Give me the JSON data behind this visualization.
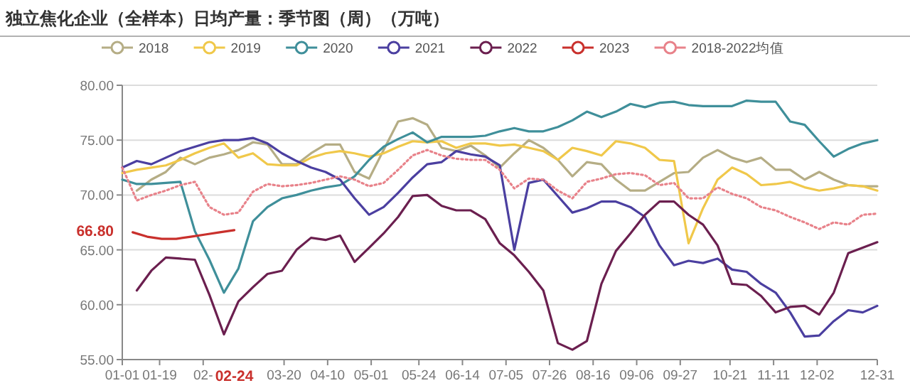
{
  "chart_data": {
    "type": "line",
    "title": "独立焦化企业（全样本）日均产量：季节图（周）（万吨）",
    "x": [
      "--01-01",
      "--01-08",
      "--01-15",
      "--01-22",
      "--01-29",
      "--02-05",
      "--02-12",
      "--02-19",
      "--02-26",
      "--03-05",
      "--03-12",
      "--03-19",
      "--03-26",
      "--04-02",
      "--04-09",
      "--04-16",
      "--04-23",
      "--04-30",
      "--05-07",
      "--05-14",
      "--05-21",
      "--05-28",
      "--06-04",
      "--06-11",
      "--06-18",
      "--06-25",
      "--07-02",
      "--07-09",
      "--07-16",
      "--07-23",
      "--07-30",
      "--08-06",
      "--08-13",
      "--08-20",
      "--08-27",
      "--09-03",
      "--09-10",
      "--09-17",
      "--09-24",
      "--10-01",
      "--10-08",
      "--10-15",
      "--10-22",
      "--10-29",
      "--11-05",
      "--11-12",
      "--11-19",
      "--11-26",
      "--12-03",
      "--12-10",
      "--12-17",
      "--12-24",
      "--12-31"
    ],
    "series": [
      {
        "name": "2018",
        "color": "#b5ad85",
        "values": [
          null,
          70.4,
          71.4,
          72.1,
          73.4,
          72.8,
          73.4,
          73.7,
          74.1,
          74.8,
          74.6,
          72.8,
          72.8,
          73.8,
          74.6,
          74.6,
          72.1,
          71.5,
          74.1,
          76.7,
          77.0,
          76.4,
          74.3,
          74.0,
          74.5,
          73.6,
          72.5,
          73.8,
          75.0,
          74.3,
          73.2,
          71.7,
          73.0,
          72.8,
          71.4,
          70.4,
          70.4,
          71.2,
          72.0,
          72.1,
          73.4,
          74.1,
          73.4,
          73.0,
          73.4,
          72.3,
          72.3,
          71.4,
          72.1,
          71.4,
          70.9,
          70.8,
          70.8
        ]
      },
      {
        "name": "2019",
        "color": "#f0c84a",
        "values": [
          72.0,
          72.3,
          72.5,
          72.7,
          73.2,
          73.8,
          74.3,
          74.7,
          73.4,
          73.8,
          72.8,
          72.7,
          72.7,
          73.4,
          73.8,
          74.0,
          73.8,
          73.5,
          73.8,
          74.4,
          74.9,
          74.8,
          74.9,
          74.3,
          74.7,
          74.7,
          74.5,
          74.6,
          74.3,
          74.0,
          73.2,
          74.3,
          74.0,
          73.6,
          74.9,
          74.7,
          74.3,
          73.2,
          73.1,
          65.6,
          68.8,
          71.4,
          72.5,
          71.9,
          70.9,
          71.0,
          71.2,
          70.7,
          70.4,
          70.6,
          70.9,
          70.8,
          70.4
        ]
      },
      {
        "name": "2020",
        "color": "#3f8f9a",
        "values": [
          71.4,
          71.0,
          71.0,
          71.1,
          71.2,
          66.7,
          64.1,
          61.1,
          63.3,
          67.6,
          68.9,
          69.7,
          70.0,
          70.4,
          70.7,
          70.9,
          71.7,
          73.2,
          74.4,
          75.1,
          75.7,
          74.8,
          75.3,
          75.3,
          75.3,
          75.4,
          75.8,
          76.1,
          75.8,
          75.8,
          76.2,
          76.8,
          77.6,
          77.1,
          77.6,
          78.3,
          78.0,
          78.4,
          78.5,
          78.2,
          78.1,
          78.1,
          78.1,
          78.6,
          78.5,
          78.5,
          76.7,
          76.4,
          74.9,
          73.5,
          74.2,
          74.7,
          75.0
        ]
      },
      {
        "name": "2021",
        "color": "#4b3fa0",
        "values": [
          72.5,
          73.1,
          72.8,
          73.4,
          74.0,
          74.4,
          74.8,
          75.0,
          75.0,
          75.2,
          74.7,
          73.8,
          73.1,
          72.5,
          72.1,
          71.4,
          69.7,
          68.2,
          68.9,
          70.2,
          71.6,
          72.8,
          73.0,
          74.0,
          73.7,
          73.5,
          72.7,
          65.0,
          71.1,
          71.4,
          69.9,
          68.4,
          68.8,
          69.4,
          69.4,
          68.9,
          68.0,
          65.4,
          63.6,
          64.0,
          63.8,
          64.2,
          63.2,
          63.0,
          61.9,
          61.1,
          59.3,
          57.1,
          57.2,
          58.5,
          59.5,
          59.3,
          59.9
        ]
      },
      {
        "name": "2022",
        "color": "#6b1f4f",
        "values": [
          null,
          61.3,
          63.1,
          64.3,
          64.2,
          64.1,
          60.9,
          57.3,
          60.3,
          61.6,
          62.8,
          63.1,
          65.0,
          66.1,
          65.9,
          66.3,
          63.9,
          65.2,
          66.5,
          68.0,
          69.9,
          70.0,
          69.0,
          68.6,
          68.6,
          67.8,
          65.6,
          64.5,
          63.0,
          61.3,
          56.5,
          55.9,
          56.7,
          61.9,
          64.9,
          66.5,
          68.2,
          69.4,
          69.4,
          68.2,
          67.3,
          65.4,
          61.9,
          61.8,
          60.8,
          59.3,
          59.8,
          59.9,
          59.1,
          61.1,
          64.7,
          65.2,
          65.7
        ]
      },
      {
        "name": "2023",
        "color": "#c9302c",
        "x": [
          "--01-06",
          "--01-13",
          "--01-20",
          "--01-27",
          "--02-03",
          "--02-10",
          "--02-17",
          "--02-24"
        ],
        "values": [
          66.6,
          66.2,
          66.0,
          66.0,
          66.2,
          66.4,
          66.6,
          66.8
        ]
      },
      {
        "name": "2018-2022均值",
        "color": "#e8828a",
        "line_style": "dotted",
        "values": [
          72.5,
          69.5,
          70.0,
          70.4,
          70.9,
          71.2,
          68.9,
          68.2,
          68.4,
          70.3,
          71.0,
          70.8,
          70.9,
          71.1,
          71.4,
          71.7,
          71.4,
          70.8,
          71.1,
          72.3,
          73.6,
          74.1,
          73.6,
          73.3,
          73.2,
          73.2,
          72.3,
          70.6,
          71.5,
          71.4,
          70.4,
          69.7,
          71.2,
          71.5,
          71.9,
          72.0,
          71.8,
          70.9,
          71.1,
          69.7,
          69.7,
          70.7,
          70.1,
          69.7,
          68.9,
          68.6,
          68.0,
          67.5,
          66.9,
          67.5,
          67.3,
          68.2,
          68.3
        ]
      }
    ],
    "xlim": [
      "--01-01",
      "--12-31"
    ],
    "xticks": [
      {
        "value": "--01-01",
        "label": "01-01"
      },
      {
        "value": "--01-19",
        "label": "01-19"
      },
      {
        "value": "--02-09",
        "label": "02-"
      },
      {
        "value": "--03-20",
        "label": "03-20"
      },
      {
        "value": "--04-10",
        "label": "04-10"
      },
      {
        "value": "--05-01",
        "label": "05-01"
      },
      {
        "value": "--05-24",
        "label": "05-24"
      },
      {
        "value": "--06-14",
        "label": "06-14"
      },
      {
        "value": "--07-05",
        "label": "07-05"
      },
      {
        "value": "--07-26",
        "label": "07-26"
      },
      {
        "value": "--08-16",
        "label": "08-16"
      },
      {
        "value": "--09-06",
        "label": "09-06"
      },
      {
        "value": "--09-27",
        "label": "09-27"
      },
      {
        "value": "--10-21",
        "label": "10-21"
      },
      {
        "value": "--11-11",
        "label": "11-11"
      },
      {
        "value": "--12-02",
        "label": "12-02"
      },
      {
        "value": "--12-31",
        "label": "12-31"
      }
    ],
    "ylim": [
      55,
      80
    ],
    "yticks": [
      {
        "value": 55,
        "label": "55.00"
      },
      {
        "value": 60,
        "label": "60.00"
      },
      {
        "value": 65,
        "label": "65.00"
      },
      {
        "value": 70,
        "label": "70.00"
      },
      {
        "value": 75,
        "label": "75.00"
      },
      {
        "value": 80,
        "label": "80.00"
      }
    ],
    "grid": "y",
    "legend": "top",
    "annotations": [
      "66.80",
      "02-24"
    ]
  }
}
